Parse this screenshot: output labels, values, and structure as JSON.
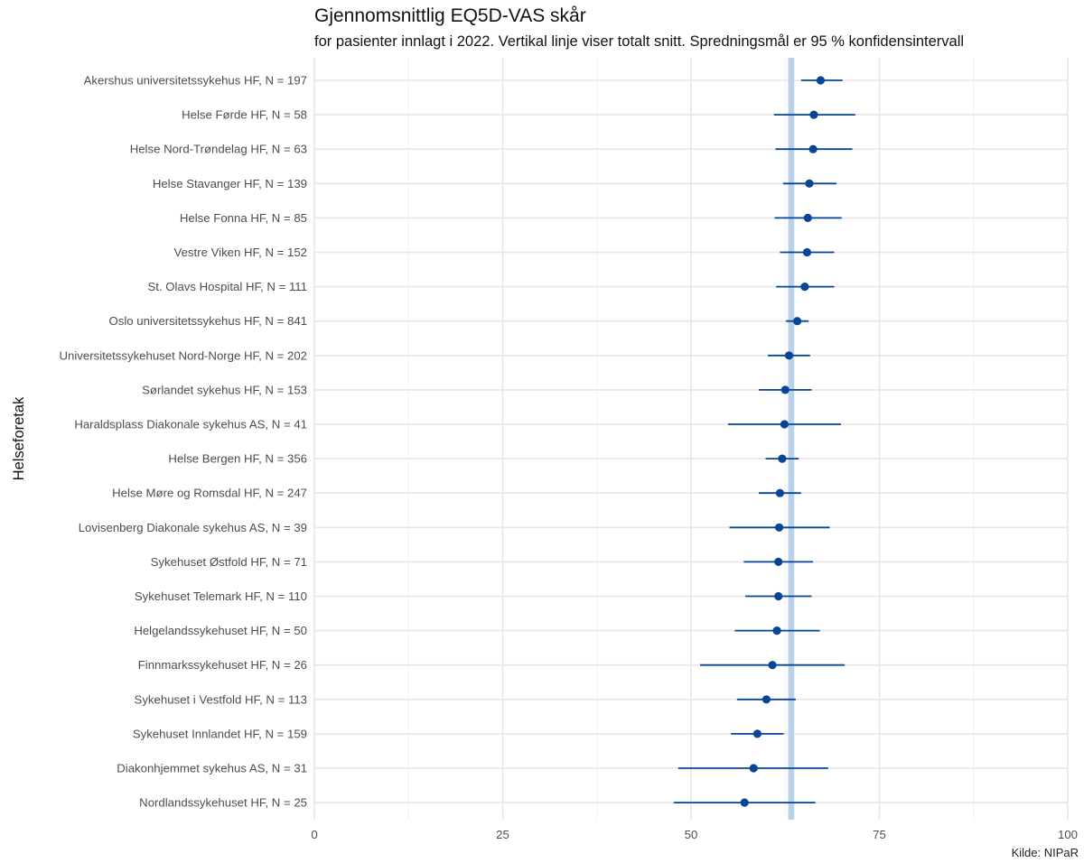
{
  "chart_data": {
    "type": "scatter",
    "title": "Gjennomsnittlig EQ5D-VAS skår",
    "subtitle": "for pasienter innlagt i 2022. Vertikal linje viser totalt snitt. Spredningsmål er 95 % konfidensintervall",
    "ylabel": "Helseforetak",
    "xlabel": "",
    "caption": "Kilde: NIPaR",
    "xlim": [
      0,
      100
    ],
    "xticks": [
      0,
      25,
      50,
      75,
      100
    ],
    "grid": true,
    "reference_line": {
      "value": 63.3,
      "ci": [
        62.9,
        63.7
      ]
    },
    "categories": [
      "Akershus universitetssykehus HF, N = 197",
      "Helse Førde HF, N = 58",
      "Helse Nord-Trøndelag HF, N = 63",
      "Helse Stavanger HF, N = 139",
      "Helse Fonna HF, N = 85",
      "Vestre Viken HF, N = 152",
      "St. Olavs Hospital HF, N = 111",
      "Oslo universitetssykehus HF, N = 841",
      "Universitetssykehuset Nord-Norge HF, N = 202",
      "Sørlandet sykehus HF, N = 153",
      "Haraldsplass Diakonale sykehus AS, N = 41",
      "Helse Bergen HF, N = 356",
      "Helse Møre og Romsdal HF, N = 247",
      "Lovisenberg Diakonale sykehus AS, N = 39",
      "Sykehuset Østfold HF, N = 71",
      "Sykehuset Telemark HF, N = 110",
      "Helgelandssykehuset HF, N = 50",
      "Finnmarkssykehuset HF, N = 26",
      "Sykehuset i Vestfold HF, N = 113",
      "Sykehuset Innlandet HF, N = 159",
      "Diakonhjemmet sykehus AS, N = 31",
      "Nordlandssykehuset HF, N = 25"
    ],
    "series": [
      {
        "values": [
          67.2,
          66.3,
          66.2,
          65.7,
          65.5,
          65.4,
          65.1,
          64.1,
          63.0,
          62.5,
          62.4,
          62.1,
          61.8,
          61.7,
          61.6,
          61.6,
          61.4,
          60.8,
          60.0,
          58.8,
          58.3,
          57.1
        ],
        "ci_low": [
          64.6,
          61.0,
          61.2,
          62.2,
          61.1,
          61.8,
          61.3,
          62.6,
          60.2,
          59.0,
          54.9,
          59.9,
          59.0,
          55.1,
          57.0,
          57.2,
          55.8,
          51.2,
          56.1,
          55.3,
          48.3,
          47.7
        ],
        "ci_high": [
          70.1,
          71.8,
          71.4,
          69.3,
          70.0,
          69.0,
          69.0,
          65.6,
          65.8,
          66.0,
          69.9,
          64.3,
          64.6,
          68.4,
          66.2,
          66.0,
          67.1,
          70.4,
          63.9,
          62.3,
          68.2,
          66.5
        ]
      }
    ]
  },
  "colors": {
    "point": "#084594",
    "reference_band": "#b9d2ea",
    "grid_major": "#e6e6e6",
    "grid_minor": "#f1f1f1",
    "axis_text": "#4d4d4d"
  }
}
